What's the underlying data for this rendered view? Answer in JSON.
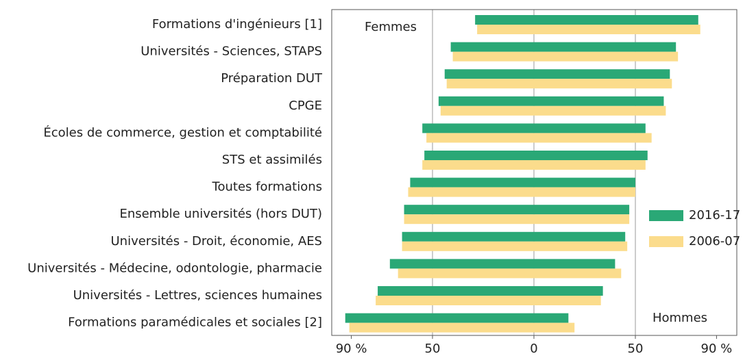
{
  "chart_data": {
    "type": "butterfly_bar",
    "categories": [
      "Formations d'ingénieurs [1]",
      "Universités - Sciences, STAPS",
      "Préparation DUT",
      "CPGE",
      "Écoles de commerce, gestion et comptabilité",
      "STS et assimilés",
      "Toutes formations",
      "Ensemble universités (hors DUT)",
      "Universités - Droit, économie, AES",
      "Universités - Médecine, odontologie, pharmacie",
      "Universités - Lettres, sciences humaines",
      "Formations paramédicales et sociales [2]"
    ],
    "series": [
      {
        "name": "2016-17",
        "color": "#2aa876",
        "femmes": [
          29,
          41,
          44,
          47,
          55,
          54,
          61,
          64,
          65,
          71,
          77,
          93
        ],
        "hommes": [
          81,
          70,
          67,
          64,
          55,
          56,
          50,
          47,
          45,
          40,
          34,
          17
        ]
      },
      {
        "name": "2006-07",
        "color": "#fbdc8c",
        "femmes": [
          28,
          40,
          43,
          46,
          53,
          55,
          62,
          64,
          65,
          67,
          78,
          91
        ],
        "hommes": [
          82,
          71,
          68,
          65,
          58,
          55,
          50,
          47,
          46,
          43,
          33,
          20
        ]
      }
    ],
    "left_label": "Femmes",
    "right_label": "Hommes",
    "xlim": [
      0,
      100
    ],
    "xticks_left": [
      {
        "value": 90,
        "label": "90 %"
      },
      50
    ],
    "xticks_right": [
      0,
      50,
      {
        "value": 90,
        "label": "90 %"
      }
    ],
    "grid": true,
    "legend": "lower right"
  }
}
